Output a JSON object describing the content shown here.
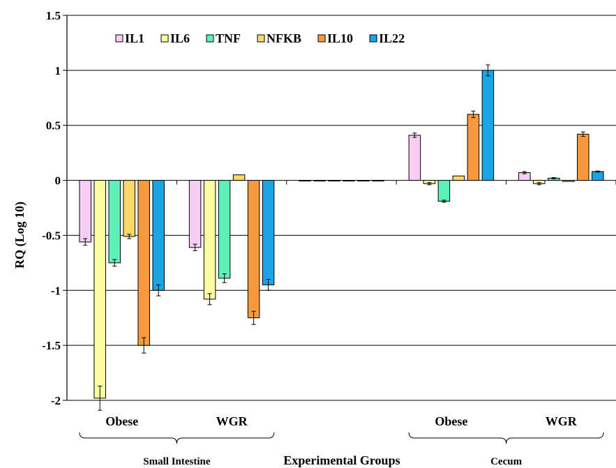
{
  "chart_data": {
    "type": "bar",
    "title": "",
    "xlabel": "Experimental Groups",
    "ylabel": "RQ (Log 10)",
    "ylim": [
      -2,
      1.5
    ],
    "yticks": [
      -2,
      -1.5,
      -1,
      -0.5,
      0,
      0.5,
      1,
      1.5
    ],
    "ytick_labels": [
      "-2",
      "-1.5",
      "-1",
      "-0.5",
      "0",
      "0.5",
      "1",
      "1.5"
    ],
    "grid": true,
    "legend_position": "top",
    "categories": [
      "Obese",
      "WGR",
      "",
      "Obese",
      "WGR"
    ],
    "sections": [
      {
        "label": "Small Intestine",
        "categories": [
          0,
          1
        ]
      },
      {
        "label": "Cecum",
        "categories": [
          3,
          4
        ]
      }
    ],
    "series": [
      {
        "name": "IL1",
        "color": "#f6cef6",
        "values": [
          -0.56,
          -0.61,
          0.0,
          0.41,
          0.07
        ],
        "errors": [
          0.03,
          0.03,
          0,
          0.02,
          0.01
        ]
      },
      {
        "name": "IL6",
        "color": "#fbfba0",
        "values": [
          -1.98,
          -1.08,
          0.0,
          -0.03,
          -0.03
        ],
        "errors": [
          0.11,
          0.05,
          0,
          0.01,
          0.01
        ]
      },
      {
        "name": "TNF",
        "color": "#5ef0b8",
        "values": [
          -0.75,
          -0.89,
          0.0,
          -0.19,
          0.02
        ],
        "errors": [
          0.03,
          0.04,
          0,
          0.01,
          0.005
        ]
      },
      {
        "name": "NFKB",
        "color": "#fad86a",
        "values": [
          -0.51,
          0.05,
          0.0,
          0.04,
          -0.01
        ],
        "errors": [
          0.02,
          0.0,
          0,
          0.0,
          0.0
        ]
      },
      {
        "name": "IL10",
        "color": "#f79a3e",
        "values": [
          -1.5,
          -1.25,
          0.0,
          0.6,
          0.42
        ],
        "errors": [
          0.07,
          0.06,
          0,
          0.03,
          0.02
        ]
      },
      {
        "name": "IL22",
        "color": "#1aa6e4",
        "values": [
          -1.0,
          -0.95,
          0.0,
          1.0,
          0.08
        ],
        "errors": [
          0.05,
          0.05,
          0,
          0.05,
          0.005
        ]
      }
    ]
  }
}
